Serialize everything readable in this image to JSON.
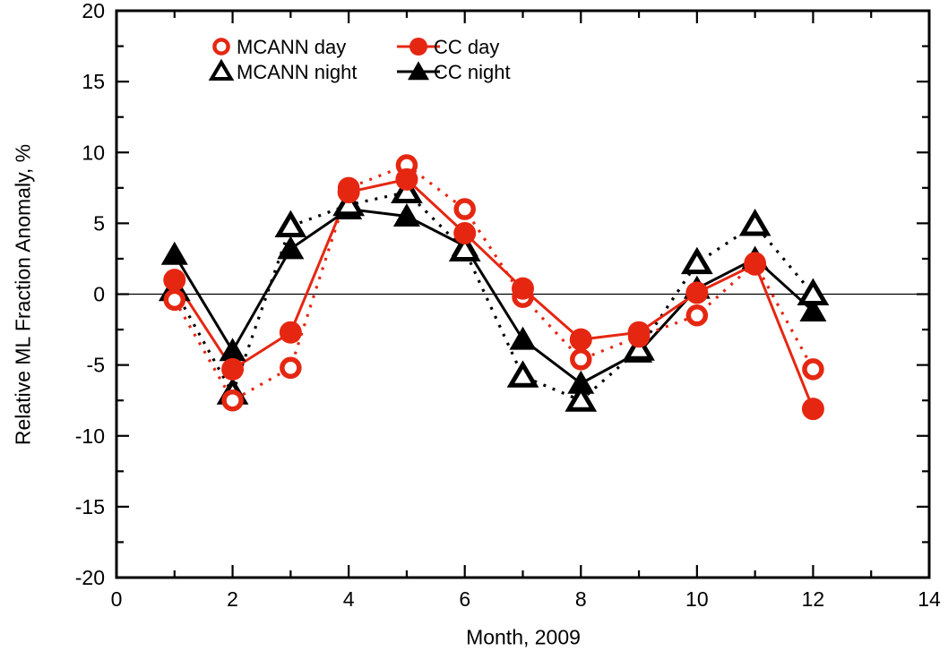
{
  "figure": {
    "background": "#ffffff",
    "frame_color": "#000000",
    "accent_red": "#e52712",
    "accent_black": "#000000"
  },
  "chart_data": {
    "type": "line",
    "title": "",
    "xlabel": "Month, 2009",
    "ylabel": "Relative ML Fraction Anomaly, %",
    "xlim": [
      0,
      14
    ],
    "ylim": [
      -20,
      20
    ],
    "xticks": [
      0,
      2,
      4,
      6,
      8,
      10,
      12,
      14
    ],
    "yticks": [
      -20,
      -15,
      -10,
      -5,
      0,
      5,
      10,
      15,
      20
    ],
    "xtick_minor_step": 1,
    "ytick_minor_step": 2.5,
    "grid": false,
    "zero_line": true,
    "legend_position": "top-inside",
    "x": [
      1,
      2,
      3,
      4,
      5,
      6,
      7,
      8,
      9,
      10,
      11,
      12
    ],
    "series": [
      {
        "name": "MCANN day",
        "marker": "open-circle",
        "color": "#e52712",
        "line": "dotted",
        "values": [
          -0.4,
          -7.5,
          -5.2,
          7.5,
          9.1,
          6.0,
          -0.2,
          -4.6,
          -3.0,
          -1.5,
          2.2,
          -5.3
        ]
      },
      {
        "name": "MCANN night",
        "marker": "open-triangle",
        "color": "#000000",
        "line": "dotted",
        "values": [
          0.3,
          -7.0,
          4.8,
          6.3,
          7.2,
          3.1,
          -5.8,
          -7.5,
          -3.9,
          2.2,
          4.9,
          0.0
        ]
      },
      {
        "name": "CC day",
        "marker": "filled-circle",
        "color": "#e52712",
        "line": "solid",
        "values": [
          1.0,
          -5.3,
          -2.7,
          7.2,
          8.1,
          4.3,
          0.4,
          -3.2,
          -2.7,
          0.1,
          2.1,
          -8.1
        ]
      },
      {
        "name": "CC night",
        "marker": "filled-triangle",
        "color": "#000000",
        "line": "solid",
        "values": [
          2.8,
          -4.0,
          3.2,
          6.0,
          5.5,
          3.4,
          -3.2,
          -6.3,
          -4.1,
          0.4,
          2.5,
          -1.2
        ]
      }
    ]
  }
}
